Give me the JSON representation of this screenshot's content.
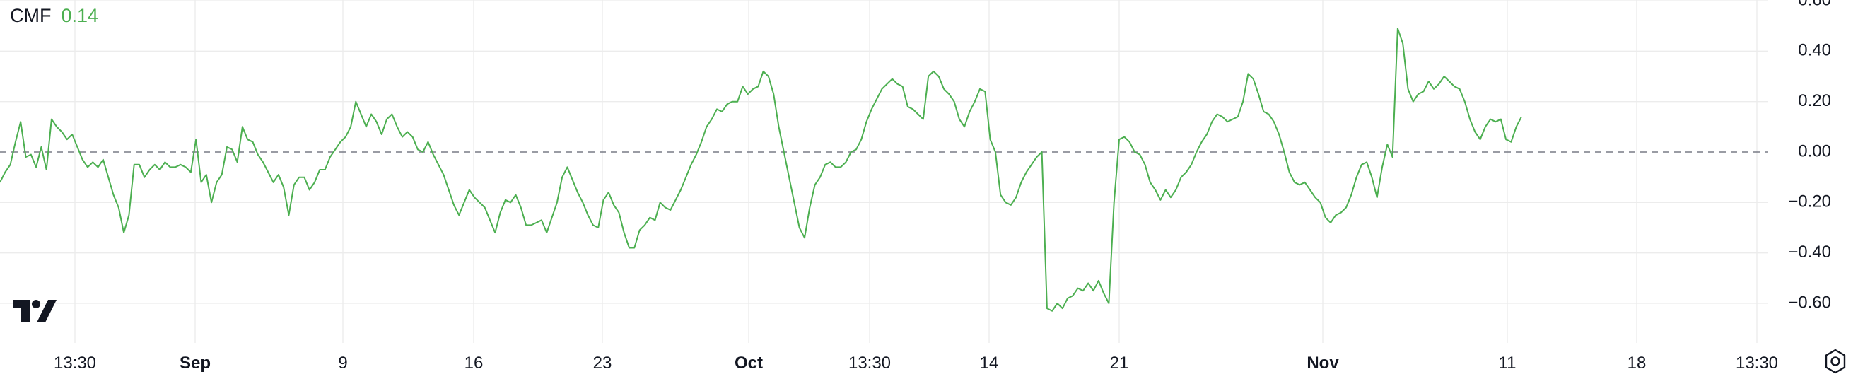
{
  "legend": {
    "label": "CMF",
    "value": "0.14"
  },
  "colors": {
    "series": "#4caf50",
    "text": "#131722",
    "grid": "#ececec",
    "zero_line": "#787b86"
  },
  "icons": {
    "logo": "tradingview-logo",
    "settings": "settings-icon"
  },
  "chart_data": {
    "type": "line",
    "title": "CMF",
    "xlabel": "",
    "ylabel": "",
    "ylim": [
      -0.6,
      0.6
    ],
    "grid": true,
    "legend": "top-left",
    "reference_line": {
      "y": 0,
      "style": "dashed"
    },
    "y_ticks": [
      "0.60",
      "0.40",
      "0.20",
      "0.00",
      "−0.20",
      "−0.40",
      "−0.60"
    ],
    "x_ticks": [
      "13:30",
      "Sep",
      "9",
      "16",
      "23",
      "Oct",
      "13:30",
      "14",
      "21",
      "Nov",
      "11",
      "18",
      "13:30"
    ],
    "x_ticks_bold": [
      "Sep",
      "Oct",
      "Nov"
    ],
    "series": [
      {
        "values": [
          -0.12,
          -0.08,
          -0.05,
          0.04,
          0.12,
          -0.02,
          -0.01,
          -0.06,
          0.02,
          -0.07,
          0.13,
          0.1,
          0.08,
          0.05,
          0.07,
          0.02,
          -0.03,
          -0.06,
          -0.04,
          -0.06,
          -0.03,
          -0.1,
          -0.17,
          -0.22,
          -0.32,
          -0.25,
          -0.05,
          -0.05,
          -0.1,
          -0.07,
          -0.05,
          -0.07,
          -0.04,
          -0.06,
          -0.06,
          -0.05,
          -0.06,
          -0.08,
          0.05,
          -0.12,
          -0.09,
          -0.2,
          -0.12,
          -0.09,
          0.02,
          0.01,
          -0.04,
          0.1,
          0.05,
          0.04,
          -0.01,
          -0.04,
          -0.08,
          -0.12,
          -0.09,
          -0.14,
          -0.25,
          -0.13,
          -0.1,
          -0.1,
          -0.15,
          -0.12,
          -0.07,
          -0.07,
          -0.02,
          0.01,
          0.04,
          0.06,
          0.1,
          0.2,
          0.15,
          0.1,
          0.15,
          0.12,
          0.07,
          0.13,
          0.15,
          0.1,
          0.06,
          0.08,
          0.06,
          0.01,
          0.0,
          0.04,
          -0.01,
          -0.05,
          -0.09,
          -0.15,
          -0.21,
          -0.25,
          -0.2,
          -0.15,
          -0.18,
          -0.2,
          -0.22,
          -0.27,
          -0.32,
          -0.24,
          -0.19,
          -0.2,
          -0.17,
          -0.22,
          -0.29,
          -0.29,
          -0.28,
          -0.27,
          -0.32,
          -0.26,
          -0.2,
          -0.1,
          -0.06,
          -0.11,
          -0.16,
          -0.2,
          -0.25,
          -0.29,
          -0.3,
          -0.19,
          -0.16,
          -0.21,
          -0.24,
          -0.32,
          -0.38,
          -0.38,
          -0.31,
          -0.29,
          -0.26,
          -0.27,
          -0.2,
          -0.22,
          -0.23,
          -0.19,
          -0.15,
          -0.1,
          -0.05,
          -0.01,
          0.04,
          0.1,
          0.13,
          0.17,
          0.16,
          0.19,
          0.2,
          0.2,
          0.26,
          0.23,
          0.25,
          0.26,
          0.32,
          0.3,
          0.23,
          0.1,
          0.0,
          -0.1,
          -0.2,
          -0.3,
          -0.34,
          -0.22,
          -0.13,
          -0.1,
          -0.05,
          -0.04,
          -0.06,
          -0.06,
          -0.04,
          0.0,
          0.01,
          0.05,
          0.12,
          0.17,
          0.21,
          0.25,
          0.27,
          0.29,
          0.27,
          0.26,
          0.18,
          0.17,
          0.15,
          0.13,
          0.3,
          0.32,
          0.3,
          0.25,
          0.23,
          0.2,
          0.13,
          0.1,
          0.16,
          0.2,
          0.25,
          0.24,
          0.05,
          0.0,
          -0.17,
          -0.2,
          -0.21,
          -0.18,
          -0.12,
          -0.08,
          -0.05,
          -0.02,
          0.0,
          -0.62,
          -0.63,
          -0.6,
          -0.62,
          -0.58,
          -0.57,
          -0.54,
          -0.55,
          -0.52,
          -0.55,
          -0.51,
          -0.56,
          -0.6,
          -0.2,
          0.05,
          0.06,
          0.04,
          0.0,
          -0.01,
          -0.05,
          -0.12,
          -0.15,
          -0.19,
          -0.15,
          -0.18,
          -0.15,
          -0.1,
          -0.08,
          -0.05,
          0.0,
          0.04,
          0.07,
          0.12,
          0.15,
          0.14,
          0.12,
          0.13,
          0.14,
          0.2,
          0.31,
          0.29,
          0.23,
          0.16,
          0.15,
          0.12,
          0.07,
          0.0,
          -0.08,
          -0.12,
          -0.13,
          -0.12,
          -0.15,
          -0.18,
          -0.2,
          -0.26,
          -0.28,
          -0.25,
          -0.24,
          -0.22,
          -0.17,
          -0.1,
          -0.05,
          -0.04,
          -0.1,
          -0.18,
          -0.06,
          0.03,
          -0.02,
          0.49,
          0.43,
          0.25,
          0.2,
          0.23,
          0.24,
          0.28,
          0.25,
          0.27,
          0.3,
          0.28,
          0.26,
          0.25,
          0.2,
          0.13,
          0.08,
          0.05,
          0.1,
          0.13,
          0.12,
          0.13,
          0.05,
          0.04,
          0.1,
          0.14
        ]
      }
    ]
  }
}
